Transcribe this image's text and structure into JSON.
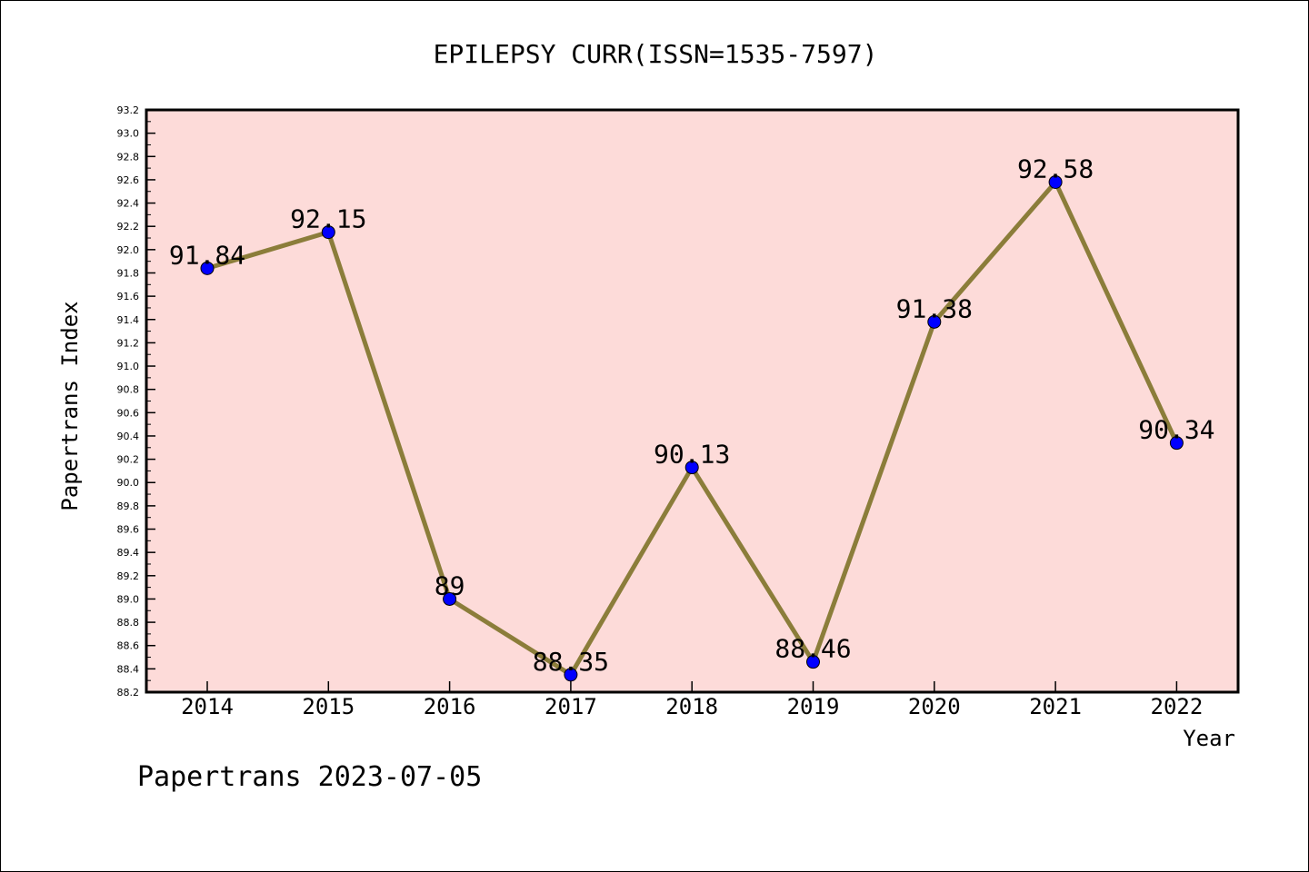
{
  "chart_data": {
    "type": "line",
    "title": "EPILEPSY CURR(ISSN=1535-7597)",
    "xlabel": "Year",
    "ylabel": "Papertrans Index",
    "categories": [
      "2014",
      "2015",
      "2016",
      "2017",
      "2018",
      "2019",
      "2020",
      "2021",
      "2022"
    ],
    "series": [
      {
        "values": [
          91.84,
          92.15,
          89,
          88.35,
          90.13,
          88.46,
          91.38,
          92.58,
          90.34
        ],
        "labels": [
          "91.84",
          "92.15",
          "89",
          "88.35",
          "90.13",
          "88.46",
          "91.38",
          "92.58",
          "90.34"
        ]
      }
    ],
    "ylim": [
      88.2,
      93.2
    ],
    "yticks": [
      "88.2",
      "88.4",
      "88.6",
      "88.8",
      "89.0",
      "89.2",
      "89.4",
      "89.6",
      "89.8",
      "90.0",
      "90.2",
      "90.4",
      "90.6",
      "90.8",
      "91.0",
      "91.2",
      "91.4",
      "91.6",
      "91.8",
      "92.0",
      "92.2",
      "92.4",
      "92.6",
      "92.8",
      "93.0",
      "93.2"
    ],
    "grid": false,
    "legend": "none",
    "colors": {
      "plot_background": "#fddbd9",
      "line": "#8b7d3a",
      "marker": "#0000ff"
    }
  },
  "footer": {
    "watermark": "Papertrans 2023-07-05"
  }
}
